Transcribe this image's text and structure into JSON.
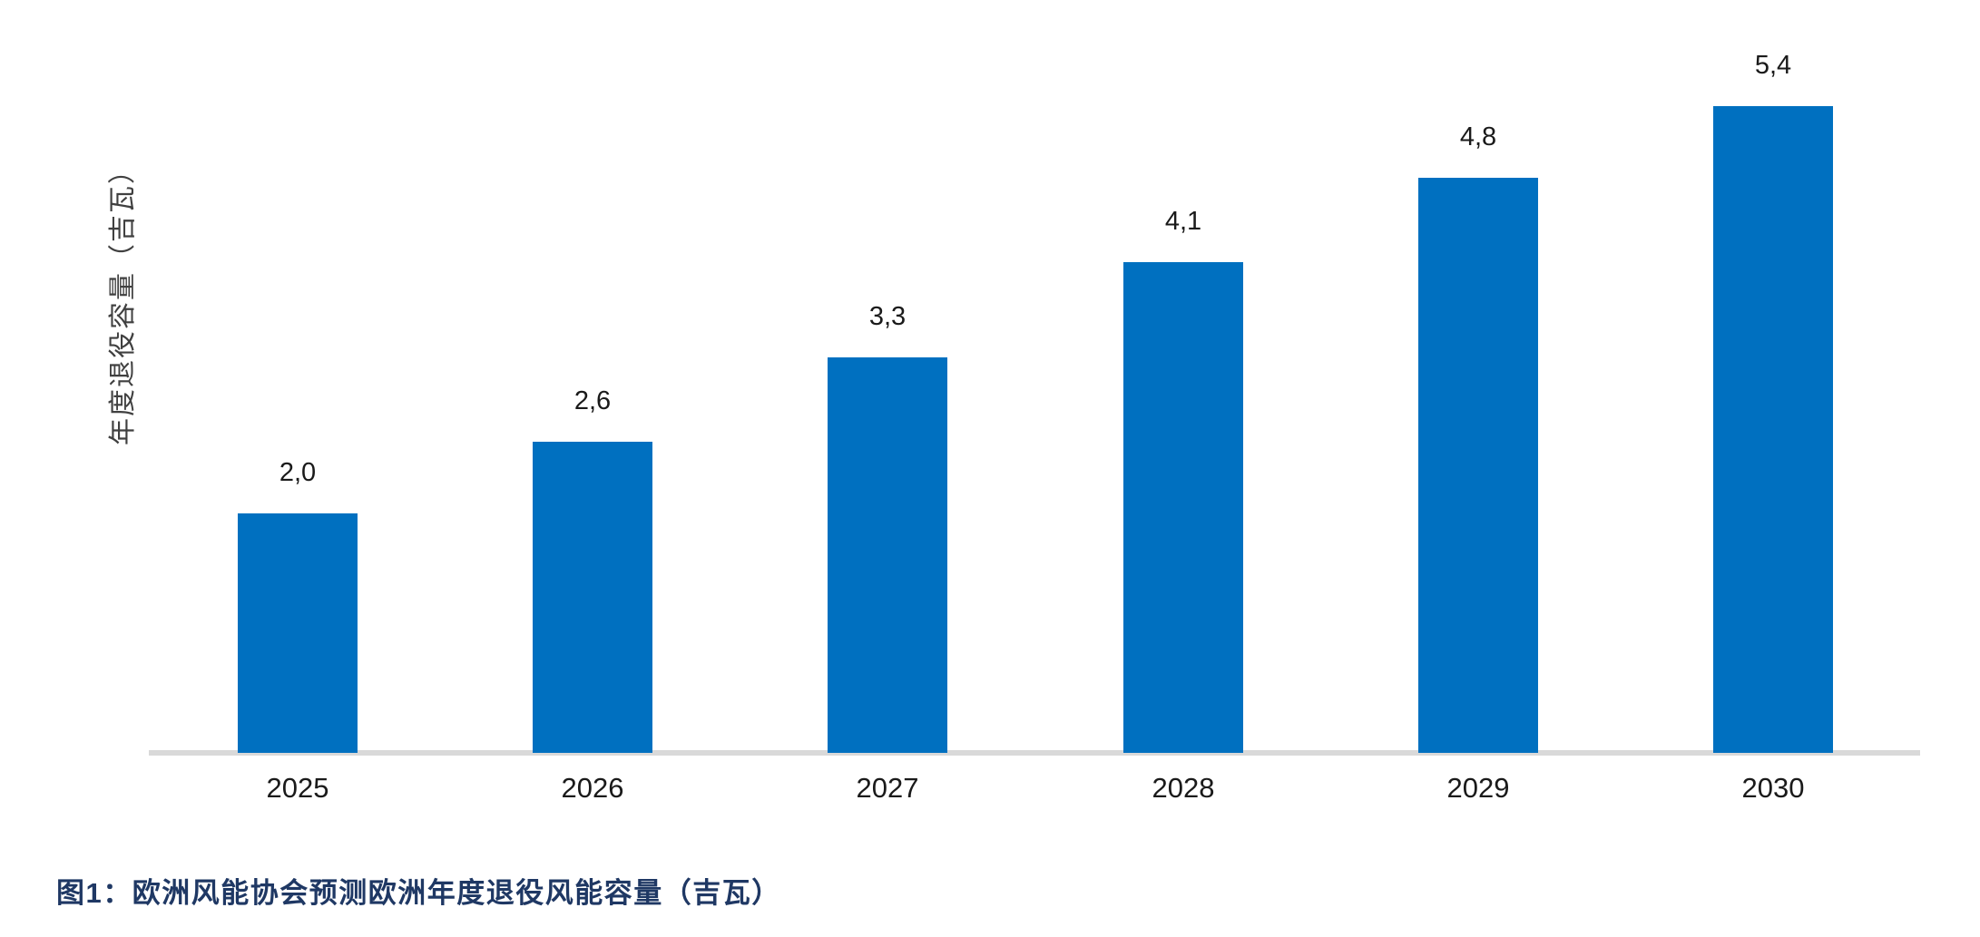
{
  "figure": {
    "caption": "图1：欧洲风能协会预测欧洲年度退役风能容量（吉瓦）",
    "caption_color": "#1f3864"
  },
  "chart_data": {
    "type": "bar",
    "title": "",
    "categories": [
      "2025",
      "2026",
      "2027",
      "2028",
      "2029",
      "2030"
    ],
    "values": [
      2.0,
      2.6,
      3.3,
      4.1,
      4.8,
      5.4
    ],
    "value_labels": [
      "2,0",
      "2,6",
      "3,3",
      "4,1",
      "4,8",
      "5,4"
    ],
    "xlabel": "",
    "ylabel": "年度退役容量（吉瓦）",
    "ylim": [
      0,
      5.6
    ],
    "grid": false,
    "legend": "none",
    "decimal_separator": ",",
    "bar_color": "#0070c0",
    "axis_line_color": "#d9d9d9",
    "label_text_color": "#1a1a1a",
    "ylabel_text_color": "#404040"
  }
}
